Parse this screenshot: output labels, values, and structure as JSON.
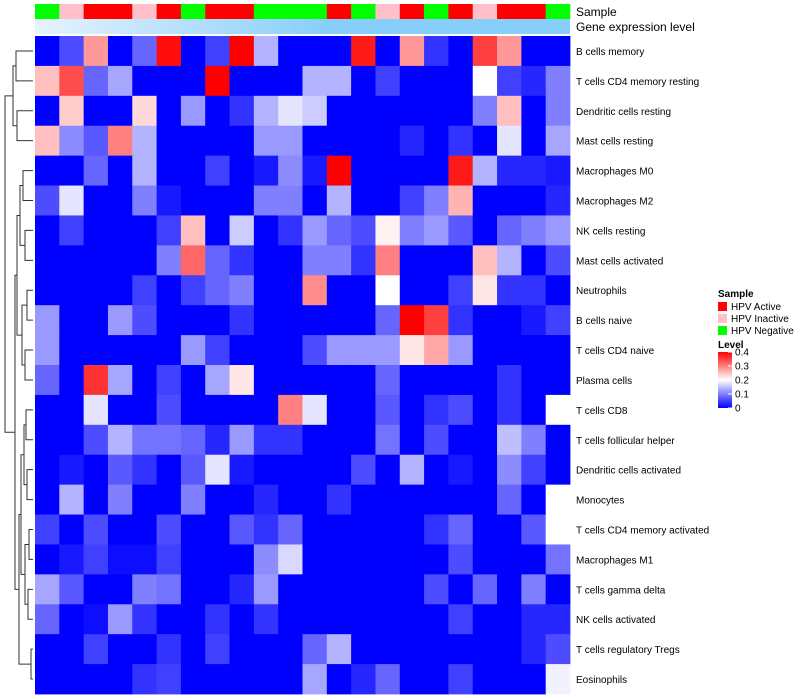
{
  "chart_data": {
    "type": "heatmap",
    "annotation_labels": {
      "sample": "Sample",
      "expression": "Gene expression level"
    },
    "sample_groups": [
      "N",
      "I",
      "A",
      "A",
      "I",
      "A",
      "N",
      "A",
      "A",
      "N",
      "N",
      "N",
      "A",
      "N",
      "I",
      "A",
      "N",
      "A",
      "I",
      "A",
      "A",
      "N"
    ],
    "rows": [
      "B cells memory",
      "T cells CD4 memory resting",
      "Dendritic cells resting",
      "Mast cells resting",
      "Macrophages M0",
      "Macrophages M2",
      "NK cells resting",
      "Mast cells activated",
      "Neutrophils",
      "B cells naive",
      "T cells CD4 naive",
      "Plasma cells",
      "T cells CD8",
      "T cells follicular helper",
      "Dendritic cells activated",
      "Monocytes",
      "T cells CD4 memory activated",
      "Macrophages M1",
      "T cells gamma delta",
      "NK cells activated",
      "T cells regulatory  Tregs",
      "Eosinophils"
    ],
    "values": [
      [
        0.0,
        0.06,
        0.28,
        0.0,
        0.08,
        0.39,
        0.0,
        0.05,
        0.4,
        0.14,
        0.0,
        0.0,
        0.0,
        0.38,
        0.0,
        0.28,
        0.04,
        0.0,
        0.35,
        0.28,
        0.0,
        0.0
      ],
      [
        0.25,
        0.34,
        0.08,
        0.13,
        0.0,
        0.0,
        0.0,
        0.4,
        0.0,
        0.0,
        0.0,
        0.14,
        0.14,
        0.0,
        0.05,
        0.0,
        0.0,
        0.0,
        0.2,
        0.05,
        0.03,
        0.1
      ],
      [
        0.0,
        0.24,
        0.0,
        0.0,
        0.23,
        0.0,
        0.12,
        0.0,
        0.04,
        0.14,
        0.18,
        0.16,
        0.0,
        0.0,
        0.0,
        0.0,
        0.0,
        0.0,
        0.1,
        0.25,
        0.0,
        0.1
      ],
      [
        0.25,
        0.11,
        0.07,
        0.3,
        0.14,
        0.0,
        0.0,
        0.0,
        0.0,
        0.12,
        0.12,
        0.0,
        0.0,
        0.0,
        0.0,
        0.03,
        0.0,
        0.04,
        0.0,
        0.18,
        0.0,
        0.13
      ],
      [
        0.0,
        0.0,
        0.08,
        0.0,
        0.14,
        0.0,
        0.0,
        0.05,
        0.0,
        0.02,
        0.11,
        0.02,
        0.4,
        0.0,
        0.0,
        0.0,
        0.0,
        0.38,
        0.14,
        0.03,
        0.03,
        0.02
      ],
      [
        0.06,
        0.18,
        0.0,
        0.0,
        0.1,
        0.02,
        0.0,
        0.0,
        0.0,
        0.1,
        0.1,
        0.0,
        0.14,
        0.0,
        0.0,
        0.05,
        0.1,
        0.26,
        0.0,
        0.0,
        0.0,
        0.03
      ],
      [
        0.0,
        0.05,
        0.0,
        0.0,
        0.0,
        0.05,
        0.25,
        0.0,
        0.16,
        0.0,
        0.04,
        0.12,
        0.08,
        0.06,
        0.21,
        0.1,
        0.12,
        0.07,
        0.0,
        0.08,
        0.1,
        0.12
      ],
      [
        0.0,
        0.0,
        0.0,
        0.0,
        0.0,
        0.1,
        0.32,
        0.08,
        0.04,
        0.0,
        0.0,
        0.1,
        0.1,
        0.04,
        0.3,
        0.0,
        0.0,
        0.0,
        0.25,
        0.14,
        0.0,
        0.06
      ],
      [
        0.0,
        0.0,
        0.0,
        0.0,
        0.05,
        0.0,
        0.05,
        0.08,
        0.1,
        0.0,
        0.0,
        0.29,
        0.0,
        0.0,
        0.2,
        0.0,
        0.0,
        0.05,
        0.22,
        0.04,
        0.04,
        0.0
      ],
      [
        0.12,
        0.0,
        0.0,
        0.12,
        0.06,
        0.0,
        0.0,
        0.0,
        0.04,
        0.0,
        0.0,
        0.0,
        0.0,
        0.0,
        0.08,
        0.4,
        0.35,
        0.04,
        0.0,
        0.0,
        0.02,
        0.05
      ],
      [
        0.12,
        0.0,
        0.0,
        0.0,
        0.0,
        0.0,
        0.12,
        0.05,
        0.0,
        0.0,
        0.0,
        0.06,
        0.12,
        0.12,
        0.12,
        0.22,
        0.27,
        0.12,
        0.0,
        0.0,
        0.0,
        0.0
      ],
      [
        0.08,
        0.0,
        0.36,
        0.13,
        0.0,
        0.05,
        0.0,
        0.13,
        0.22,
        0.0,
        0.0,
        0.0,
        0.0,
        0.0,
        0.08,
        0.0,
        0.0,
        0.0,
        0.0,
        0.04,
        0.0,
        0.0
      ],
      [
        0.0,
        0.0,
        0.18,
        0.0,
        0.0,
        0.06,
        0.0,
        0.0,
        0.0,
        0.0,
        0.3,
        0.18,
        0.0,
        0.0,
        0.07,
        0.0,
        0.04,
        0.06,
        0.0,
        0.04,
        0.0,
        0.2
      ],
      [
        0.0,
        0.0,
        0.06,
        0.14,
        0.09,
        0.09,
        0.08,
        0.03,
        0.12,
        0.04,
        0.04,
        0.0,
        0.0,
        0.0,
        0.09,
        0.0,
        0.06,
        0.0,
        0.0,
        0.15,
        0.1,
        0.0
      ],
      [
        0.0,
        0.02,
        0.0,
        0.07,
        0.04,
        0.0,
        0.07,
        0.18,
        0.02,
        0.0,
        0.0,
        0.0,
        0.0,
        0.06,
        0.0,
        0.14,
        0.0,
        0.02,
        0.0,
        0.11,
        0.05,
        0.0
      ],
      [
        0.0,
        0.14,
        0.0,
        0.1,
        0.0,
        0.0,
        0.1,
        0.0,
        0.0,
        0.03,
        0.0,
        0.0,
        0.04,
        0.0,
        0.0,
        0.0,
        0.0,
        0.0,
        0.0,
        0.08,
        0.0,
        0.2
      ],
      [
        0.05,
        0.0,
        0.06,
        0.0,
        0.0,
        0.06,
        0.0,
        0.0,
        0.07,
        0.04,
        0.08,
        0.0,
        0.0,
        0.0,
        0.0,
        0.0,
        0.04,
        0.08,
        0.0,
        0.0,
        0.07,
        0.2
      ],
      [
        0.0,
        0.02,
        0.05,
        0.01,
        0.01,
        0.05,
        0.0,
        0.0,
        0.0,
        0.11,
        0.17,
        0.0,
        0.0,
        0.0,
        0.0,
        0.0,
        0.0,
        0.06,
        0.0,
        0.0,
        0.0,
        0.09
      ],
      [
        0.13,
        0.07,
        0.0,
        0.0,
        0.1,
        0.09,
        0.0,
        0.0,
        0.03,
        0.12,
        0.0,
        0.0,
        0.0,
        0.0,
        0.0,
        0.0,
        0.06,
        0.0,
        0.08,
        0.0,
        0.1,
        0.0
      ],
      [
        0.08,
        0.0,
        0.01,
        0.12,
        0.04,
        0.0,
        0.0,
        0.04,
        0.0,
        0.04,
        0.0,
        0.0,
        0.0,
        0.0,
        0.0,
        0.0,
        0.0,
        0.05,
        0.0,
        0.0,
        0.03,
        0.03
      ],
      [
        0.0,
        0.0,
        0.05,
        0.0,
        0.0,
        0.04,
        0.0,
        0.05,
        0.0,
        0.0,
        0.0,
        0.08,
        0.14,
        0.0,
        0.0,
        0.0,
        0.0,
        0.0,
        0.0,
        0.0,
        0.03,
        0.06
      ],
      [
        0.0,
        0.0,
        0.0,
        0.0,
        0.04,
        0.05,
        0.0,
        0.0,
        0.0,
        0.0,
        0.0,
        0.13,
        0.0,
        0.03,
        0.08,
        0.0,
        0.0,
        0.05,
        0.0,
        0.0,
        0.0,
        0.19
      ]
    ],
    "legend": {
      "sample_title": "Sample",
      "sample_entries": [
        {
          "key": "A",
          "label": "HPV Active",
          "color": "#ff0000"
        },
        {
          "key": "I",
          "label": "HPV Inactive",
          "color": "#ffc0cb"
        },
        {
          "key": "N",
          "label": "HPV Negative",
          "color": "#00ff00"
        }
      ],
      "level_title": "Level",
      "level_ticks": [
        "0",
        "0.1",
        "0.2",
        "0.3",
        "0.4"
      ],
      "level_range": [
        0,
        0.4
      ]
    },
    "colors": {
      "low": "#0000ff",
      "mid": "#ffffff",
      "high": "#ff0000",
      "expression_bar": "#87cefa",
      "expression_bar_start": "#e6f3fc"
    }
  }
}
